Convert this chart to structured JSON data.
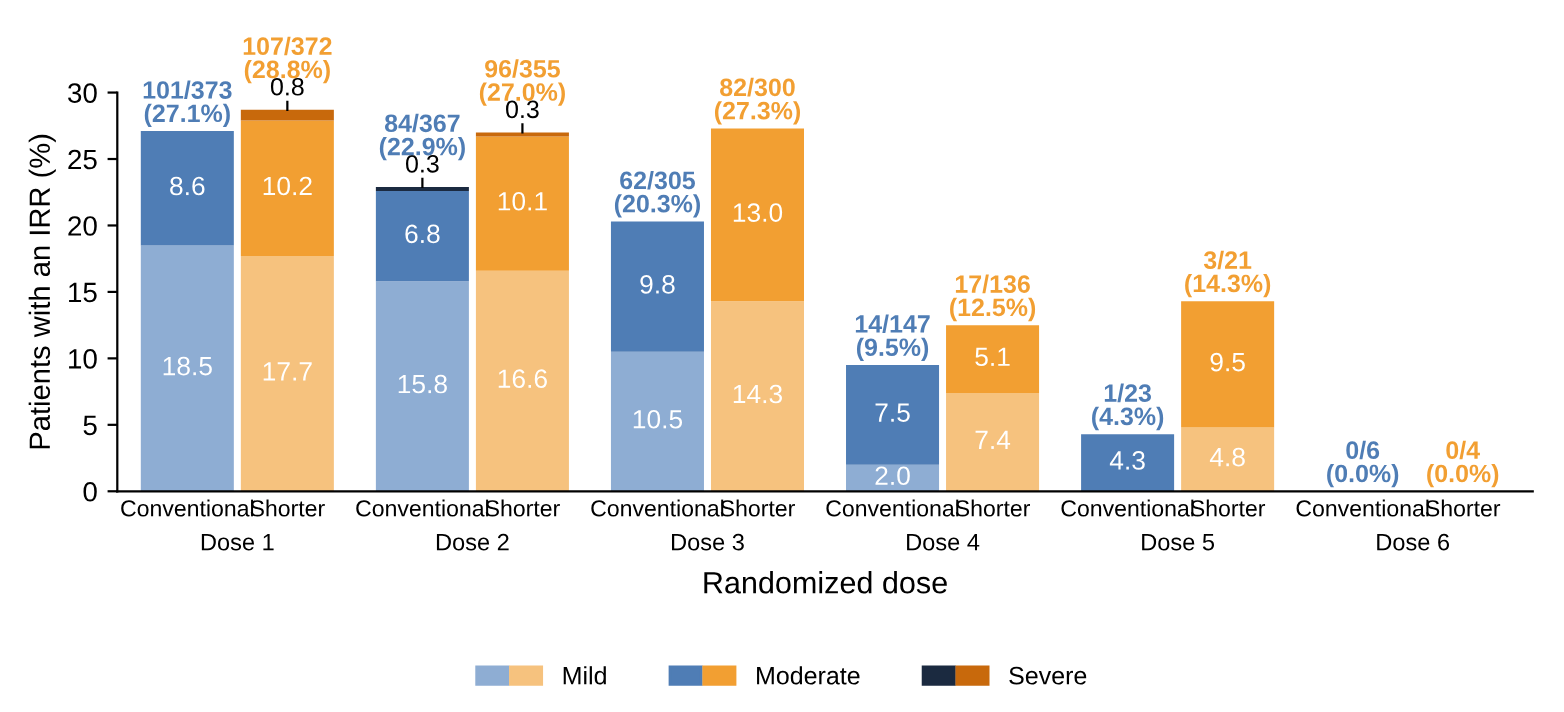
{
  "chart_data": {
    "type": "bar",
    "stacked": true,
    "xlabel": "Randomized dose",
    "ylabel": "Patients with an IRR (%)",
    "categories": [
      "Conventional",
      "Shorter",
      "Conventional",
      "Shorter",
      "Conventional",
      "Shorter",
      "Conventional",
      "Shorter",
      "Conventional",
      "Shorter",
      "Conventional",
      "Shorter"
    ],
    "series": [
      {
        "name": "Mild",
        "colors": [
          "#8eadd3",
          "#f6c27e",
          "#8eadd3",
          "#f6c27e",
          "#8eadd3",
          "#f6c27e",
          "#8eadd3",
          "#f6c27e",
          "#8eadd3",
          "#f6c27e",
          "#8eadd3",
          "#f6c27e"
        ],
        "values": [
          18.5,
          17.7,
          15.8,
          16.6,
          10.5,
          14.3,
          2.0,
          7.4,
          0,
          4.8,
          0,
          0
        ],
        "value_labels": [
          "18.5",
          "17.7",
          "15.8",
          "16.6",
          "10.5",
          "14.3",
          "2.0",
          "7.4",
          null,
          "4.8",
          null,
          null
        ]
      },
      {
        "name": "Moderate",
        "colors": [
          "#4f7db5",
          "#f29f32",
          "#4f7db5",
          "#f29f32",
          "#4f7db5",
          "#f29f32",
          "#4f7db5",
          "#f29f32",
          "#4f7db5",
          "#f29f32",
          "#4f7db5",
          "#f29f32"
        ],
        "values": [
          8.6,
          10.2,
          6.8,
          10.1,
          9.8,
          13.0,
          7.5,
          5.1,
          4.3,
          9.5,
          0,
          0
        ],
        "value_labels": [
          "8.6",
          "10.2",
          "6.8",
          "10.1",
          "9.8",
          "13.0",
          "7.5",
          "5.1",
          "4.3",
          "9.5",
          null,
          null
        ]
      },
      {
        "name": "Severe",
        "colors": [
          "#1b2a40",
          "#c8690c",
          "#1b2a40",
          "#c8690c",
          "#1b2a40",
          "#c8690c",
          "#1b2a40",
          "#c8690c",
          "#1b2a40",
          "#c8690c",
          "#1b2a40",
          "#c8690c"
        ],
        "values": [
          0,
          0.8,
          0.3,
          0.3,
          0,
          0,
          0,
          0,
          0,
          0,
          0,
          0
        ],
        "value_labels": [
          null,
          "0.8",
          "0.3",
          "0.3",
          null,
          null,
          null,
          null,
          null,
          null,
          null,
          null
        ]
      }
    ],
    "totals": [
      "101/373\n(27.1%)",
      "107/372\n(28.8%)",
      "84/367\n(22.9%)",
      "96/355\n(27.0%)",
      "62/305\n(20.3%)",
      "82/300\n(27.3%)",
      "14/147\n(9.5%)",
      "17/136\n(12.5%)",
      "1/23\n(4.3%)",
      "3/21\n(14.3%)",
      "0/6\n(0.0%)",
      "0/4\n(0.0%)"
    ],
    "annotations": [
      "Dose 1",
      "Dose 2",
      "Dose 3",
      "Dose 4",
      "Dose 5",
      "Dose 6"
    ],
    "ylim": [
      0,
      30
    ],
    "yticks": [
      0,
      5,
      10,
      15,
      20,
      25,
      30
    ],
    "grid": false,
    "legend": "bottom"
  }
}
